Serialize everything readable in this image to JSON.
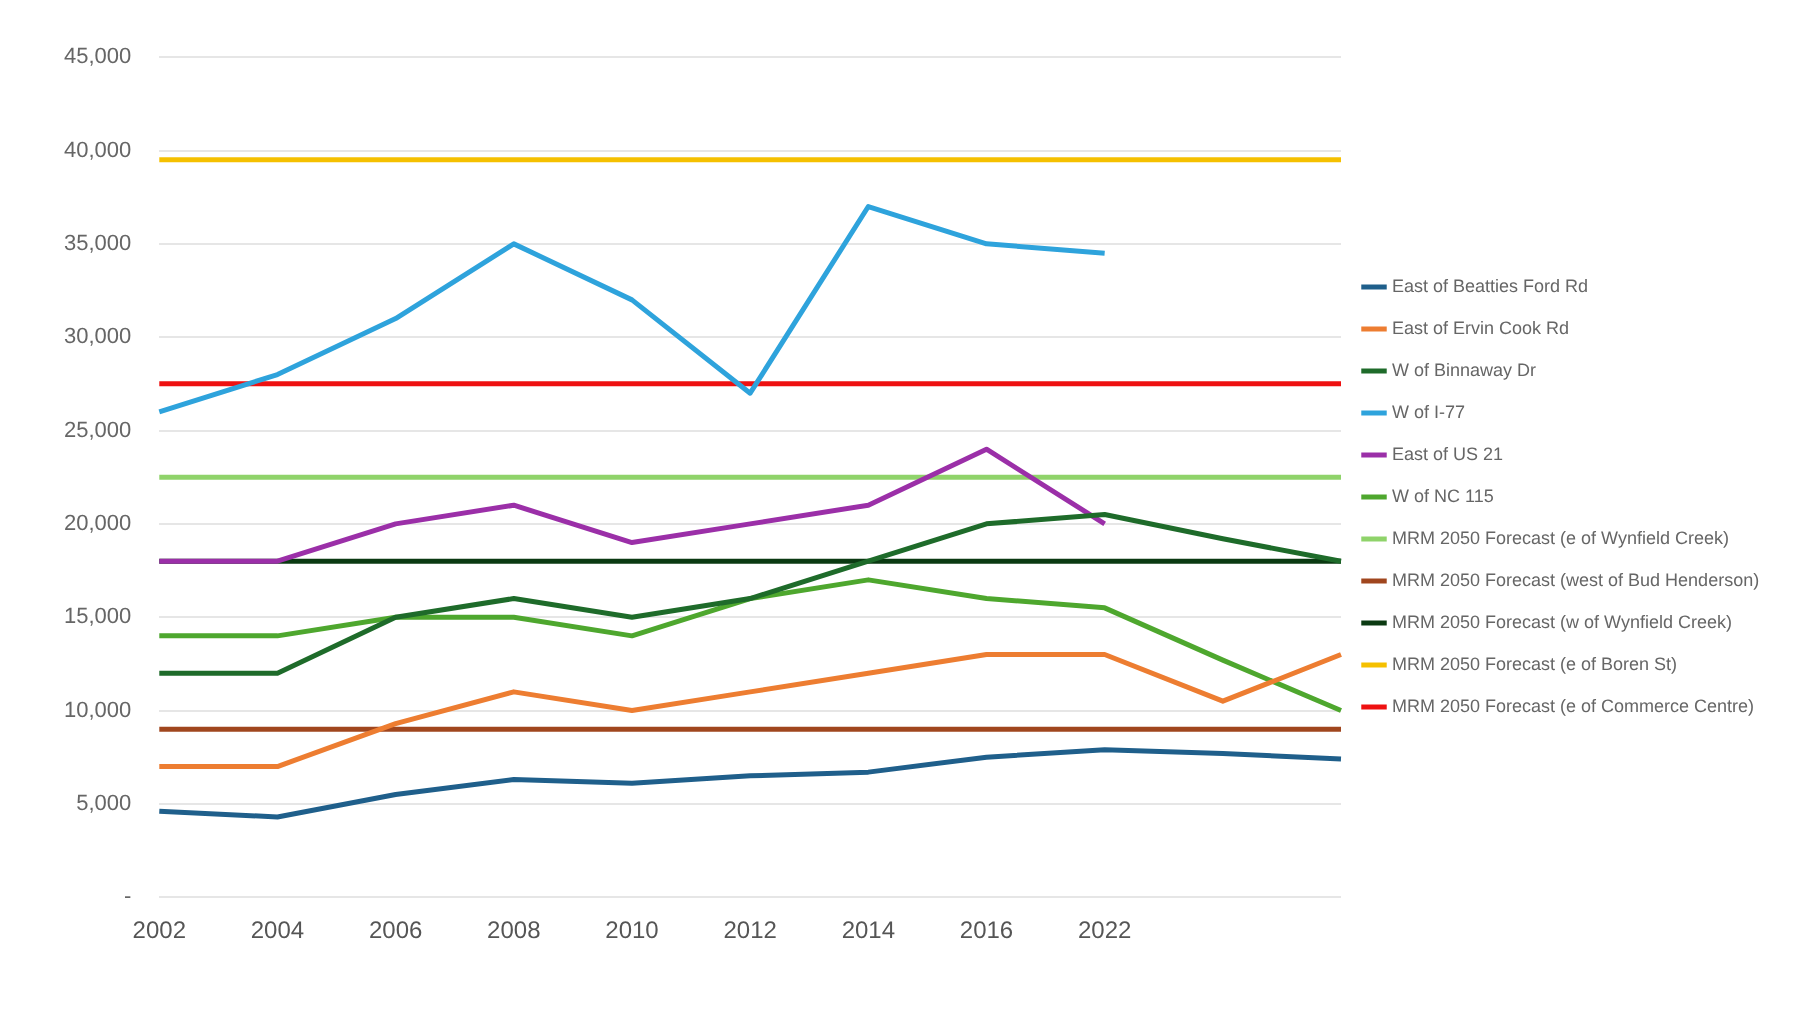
{
  "chart_data": {
    "type": "line",
    "categories": [
      "2002",
      "2004",
      "2006",
      "2008",
      "2010",
      "2012",
      "2014",
      "2016",
      "2022",
      null,
      null
    ],
    "series": [
      {
        "name": "East of Beatties Ford Rd",
        "color": "#1f5f8b",
        "values": [
          4600,
          4300,
          5500,
          6300,
          6100,
          6500,
          6700,
          7500,
          7900,
          7700,
          7400
        ]
      },
      {
        "name": "East of Ervin Cook Rd",
        "color": "#ed7d31",
        "values": [
          7000,
          7000,
          9300,
          11000,
          10000,
          11000,
          12000,
          13000,
          13000,
          10500,
          13000
        ]
      },
      {
        "name": "W of Binnaway Dr",
        "color": "#1e6b2a",
        "values": [
          12000,
          12000,
          15000,
          16000,
          15000,
          16000,
          18000,
          20000,
          20500,
          19200,
          18000
        ]
      },
      {
        "name": "W of I-77",
        "color": "#2ea3dc",
        "values": [
          26000,
          28000,
          31000,
          35000,
          32000,
          27000,
          37000,
          35000,
          34500,
          null,
          null
        ]
      },
      {
        "name": "East of US 21",
        "color": "#9b2fa8",
        "values": [
          18000,
          18000,
          20000,
          21000,
          19000,
          20000,
          21000,
          24000,
          20000,
          null,
          null
        ]
      },
      {
        "name": "W of NC 115",
        "color": "#4ea72e",
        "values": [
          14000,
          14000,
          15000,
          15000,
          14000,
          16000,
          17000,
          16000,
          15500,
          12700,
          10000
        ]
      },
      {
        "name": "MRM 2050 Forecast (e of Wynfield Creek)",
        "color": "#8fd36a",
        "values": [
          22500,
          22500,
          22500,
          22500,
          22500,
          22500,
          22500,
          22500,
          22500,
          22500,
          22500
        ]
      },
      {
        "name": "MRM 2050 Forecast (west of Bud Henderson)",
        "color": "#a0461e",
        "values": [
          9000,
          9000,
          9000,
          9000,
          9000,
          9000,
          9000,
          9000,
          9000,
          9000,
          9000
        ]
      },
      {
        "name": "MRM 2050 Forecast (w of Wynfield Creek)",
        "color": "#0b3a12",
        "values": [
          18000,
          18000,
          18000,
          18000,
          18000,
          18000,
          18000,
          18000,
          18000,
          18000,
          18000
        ]
      },
      {
        "name": "MRM 2050 Forecast (e of Boren St)",
        "color": "#f5c000",
        "values": [
          39500,
          39500,
          39500,
          39500,
          39500,
          39500,
          39500,
          39500,
          39500,
          39500,
          39500
        ]
      },
      {
        "name": "MRM 2050 Forecast (e of Commerce Centre)",
        "color": "#ee1111",
        "values": [
          27500,
          27500,
          27500,
          27500,
          27500,
          27500,
          27500,
          27500,
          27500,
          27500,
          27500
        ]
      }
    ],
    "ylim": [
      0,
      45000
    ],
    "yticks": [
      {
        "value": 0,
        "label": "-"
      },
      {
        "value": 5000,
        "label": "5,000"
      },
      {
        "value": 10000,
        "label": "10,000"
      },
      {
        "value": 15000,
        "label": "15,000"
      },
      {
        "value": 20000,
        "label": "20,000"
      },
      {
        "value": 25000,
        "label": "25,000"
      },
      {
        "value": 30000,
        "label": "30,000"
      },
      {
        "value": 35000,
        "label": "35,000"
      },
      {
        "value": 40000,
        "label": "40,000"
      },
      {
        "value": 45000,
        "label": "45,000"
      }
    ],
    "grid": "y",
    "legend": "right",
    "marker": "none",
    "line_style": "solid"
  }
}
